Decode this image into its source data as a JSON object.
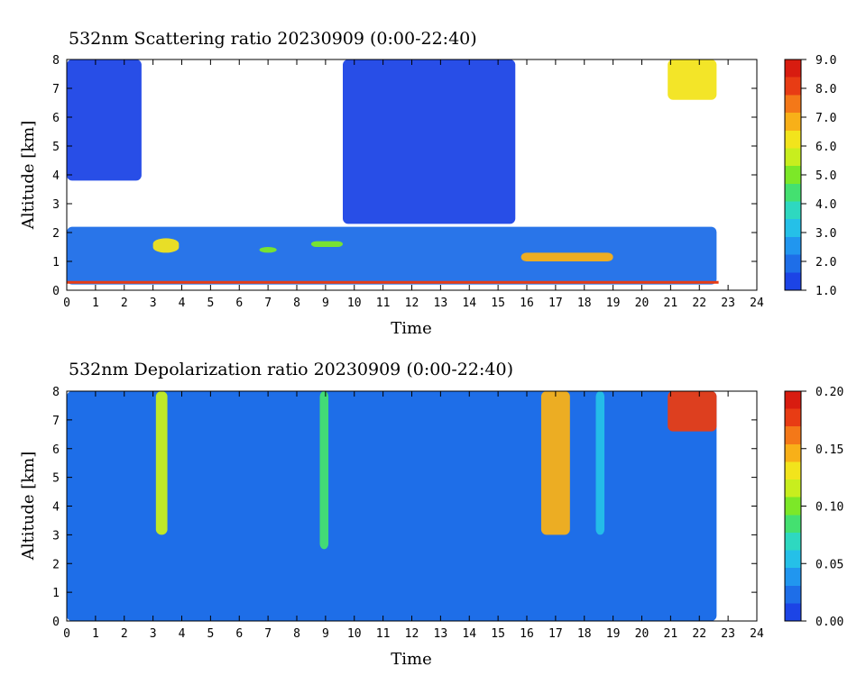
{
  "chart_data": [
    {
      "type": "heatmap",
      "title": "532nm Scattering ratio  20230909 (0:00-22:40)",
      "xlabel": "Time",
      "ylabel": "Altitude [km]",
      "xlim": [
        0,
        24
      ],
      "ylim": [
        0,
        8
      ],
      "x_ticks": [
        "0",
        "1",
        "2",
        "3",
        "4",
        "5",
        "6",
        "7",
        "8",
        "9",
        "10",
        "11",
        "12",
        "13",
        "14",
        "15",
        "16",
        "17",
        "18",
        "19",
        "20",
        "21",
        "22",
        "23",
        "24"
      ],
      "y_ticks": [
        "0",
        "1",
        "2",
        "3",
        "4",
        "5",
        "6",
        "7",
        "8"
      ],
      "data_end_time": 22.67,
      "colorbar": {
        "range": [
          1.0,
          9.0
        ],
        "ticks": [
          "1.0",
          "2.0",
          "3.0",
          "4.0",
          "5.0",
          "6.0",
          "7.0",
          "8.0",
          "9.0"
        ],
        "colors": [
          "#1c44e6",
          "#1e6ee8",
          "#2196ef",
          "#25c0e8",
          "#2ed8c0",
          "#44e070",
          "#7ce828",
          "#c8ee1e",
          "#f2e41c",
          "#f8b018",
          "#f47818",
          "#e83c14",
          "#d81c10"
        ]
      },
      "features": [
        {
          "name": "upper cloud left",
          "time": [
            0.0,
            2.6
          ],
          "altitude": [
            3.8,
            8.0
          ],
          "ratio": 1.6
        },
        {
          "name": "upper cloud middle",
          "time": [
            9.6,
            15.6
          ],
          "altitude": [
            2.3,
            8.0
          ],
          "ratio": 1.6
        },
        {
          "name": "boundary layer",
          "time": [
            0.0,
            22.6
          ],
          "altitude": [
            0.2,
            2.2
          ],
          "ratio": 2.0
        },
        {
          "name": "aerosol patch 3.4h",
          "time": [
            3.0,
            3.9
          ],
          "altitude": [
            1.3,
            1.8
          ],
          "ratio": 6.0
        },
        {
          "name": "aerosol patch 7h",
          "time": [
            6.7,
            7.3
          ],
          "altitude": [
            1.3,
            1.5
          ],
          "ratio": 5.0
        },
        {
          "name": "aerosol patch 9h",
          "time": [
            8.5,
            9.6
          ],
          "altitude": [
            1.5,
            1.7
          ],
          "ratio": 5.0
        },
        {
          "name": "aerosol layer 16-19h",
          "time": [
            15.8,
            19.0
          ],
          "altitude": [
            1.0,
            1.3
          ],
          "ratio": 7.0
        },
        {
          "name": "high cloud 21-22.6h",
          "time": [
            20.9,
            22.6
          ],
          "altitude": [
            6.6,
            8.0
          ],
          "ratio": 6.0
        }
      ]
    },
    {
      "type": "heatmap",
      "title": "532nm Depolarization ratio  20230909 (0:00-22:40)",
      "xlabel": "Time",
      "ylabel": "Altitude [km]",
      "xlim": [
        0,
        24
      ],
      "ylim": [
        0,
        8
      ],
      "x_ticks": [
        "0",
        "1",
        "2",
        "3",
        "4",
        "5",
        "6",
        "7",
        "8",
        "9",
        "10",
        "11",
        "12",
        "13",
        "14",
        "15",
        "16",
        "17",
        "18",
        "19",
        "20",
        "21",
        "22",
        "23",
        "24"
      ],
      "y_ticks": [
        "0",
        "1",
        "2",
        "3",
        "4",
        "5",
        "6",
        "7",
        "8"
      ],
      "data_end_time": 22.67,
      "colorbar": {
        "range": [
          0.0,
          0.2
        ],
        "ticks": [
          "0.00",
          "0.05",
          "0.10",
          "0.15",
          "0.20"
        ],
        "colors": [
          "#1c44e6",
          "#1e6ee8",
          "#2196ef",
          "#25c0e8",
          "#2ed8c0",
          "#44e070",
          "#7ce828",
          "#c8ee1e",
          "#f2e41c",
          "#f8b018",
          "#f47818",
          "#e83c14",
          "#d81c10"
        ]
      },
      "features": [
        {
          "name": "background",
          "time": [
            0.0,
            22.6
          ],
          "altitude": [
            0.0,
            8.0
          ],
          "ratio": 0.03
        },
        {
          "name": "plume 3.3h",
          "time": [
            3.1,
            3.5
          ],
          "altitude": [
            3.0,
            8.0
          ],
          "ratio": 0.12
        },
        {
          "name": "plume 9h",
          "time": [
            8.8,
            9.1
          ],
          "altitude": [
            2.5,
            8.0
          ],
          "ratio": 0.08
        },
        {
          "name": "plume 17h",
          "time": [
            16.5,
            17.5
          ],
          "altitude": [
            3.0,
            8.0
          ],
          "ratio": 0.15
        },
        {
          "name": "plume 18.6h",
          "time": [
            18.4,
            18.7
          ],
          "altitude": [
            3.0,
            8.0
          ],
          "ratio": 0.05
        },
        {
          "name": "high cloud 21-22.6h",
          "time": [
            20.9,
            22.6
          ],
          "altitude": [
            6.6,
            8.0
          ],
          "ratio": 0.17
        }
      ]
    }
  ]
}
